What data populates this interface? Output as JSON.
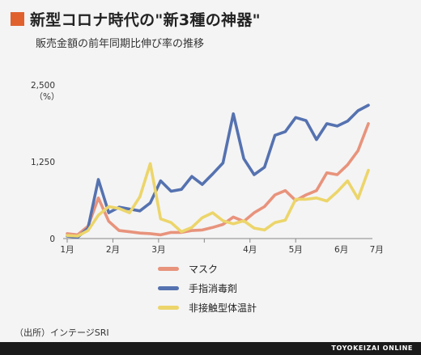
{
  "title": "新型コロナ時代の\"新3種の神器\"",
  "subtitle": "販売金額の前年同期比伸び率の推移",
  "source": "（出所）インテージSRI",
  "brand": "TOYOKEIZAI ONLINE",
  "colors": {
    "accent": "#e0612e",
    "footer": "#1a1a1a"
  },
  "chart_data": {
    "type": "line",
    "y_unit_label": "（%）",
    "ylim": [
      0,
      2500
    ],
    "yticks": [
      0,
      1250,
      2500
    ],
    "ytick_labels": [
      "0",
      "1,250",
      "2,500"
    ],
    "xlim": [
      0,
      29
    ],
    "xtick_positions": [
      0,
      4.4,
      8.8,
      13.2,
      17.6,
      22.0
    ],
    "xtick_labels": [
      "1月",
      "2月",
      "3月",
      "4月",
      "5月",
      "6月",
      "7月"
    ],
    "xtick_label_positions": [
      0,
      4.4,
      8.8,
      17.6,
      22.0,
      26.4,
      29.8
    ],
    "grid": false,
    "legend_position": "bottom",
    "series": [
      {
        "name": "マスク",
        "color": "#e8937c",
        "x": [
          0,
          1,
          2,
          3,
          4,
          5,
          6,
          7,
          8,
          9,
          10,
          11,
          12,
          13,
          14,
          15,
          16,
          17,
          18,
          19,
          20,
          21,
          22,
          23,
          24,
          25,
          26,
          27,
          28,
          29
        ],
        "values": [
          80,
          60,
          200,
          660,
          280,
          130,
          110,
          90,
          80,
          60,
          100,
          100,
          130,
          140,
          180,
          230,
          350,
          280,
          420,
          520,
          710,
          780,
          620,
          710,
          780,
          1070,
          1040,
          1200,
          1430,
          1870
        ]
      },
      {
        "name": "手指消毒剤",
        "color": "#5572b0",
        "x": [
          0,
          1,
          2,
          3,
          4,
          5,
          6,
          7,
          8,
          9,
          10,
          11,
          12,
          13,
          14,
          15,
          16,
          17,
          18,
          19,
          20,
          21,
          22,
          23,
          24,
          25,
          26,
          27,
          28,
          29
        ],
        "values": [
          40,
          20,
          170,
          960,
          420,
          510,
          480,
          450,
          580,
          940,
          770,
          800,
          1010,
          880,
          1050,
          1230,
          2030,
          1300,
          1040,
          1160,
          1680,
          1740,
          1970,
          1920,
          1610,
          1870,
          1830,
          1910,
          2080,
          2170
        ]
      },
      {
        "name": "非接触型体温計",
        "color": "#ecd56a",
        "x": [
          0,
          1,
          2,
          3,
          4,
          5,
          6,
          7,
          8,
          9,
          10,
          11,
          12,
          13,
          14,
          15,
          16,
          17,
          18,
          19,
          20,
          21,
          22,
          23,
          24,
          25,
          26,
          27,
          28,
          29
        ],
        "values": [
          50,
          40,
          130,
          380,
          520,
          490,
          420,
          680,
          1220,
          320,
          260,
          110,
          180,
          340,
          420,
          290,
          240,
          290,
          170,
          140,
          260,
          300,
          640,
          640,
          660,
          610,
          760,
          940,
          650,
          1110
        ]
      }
    ]
  }
}
